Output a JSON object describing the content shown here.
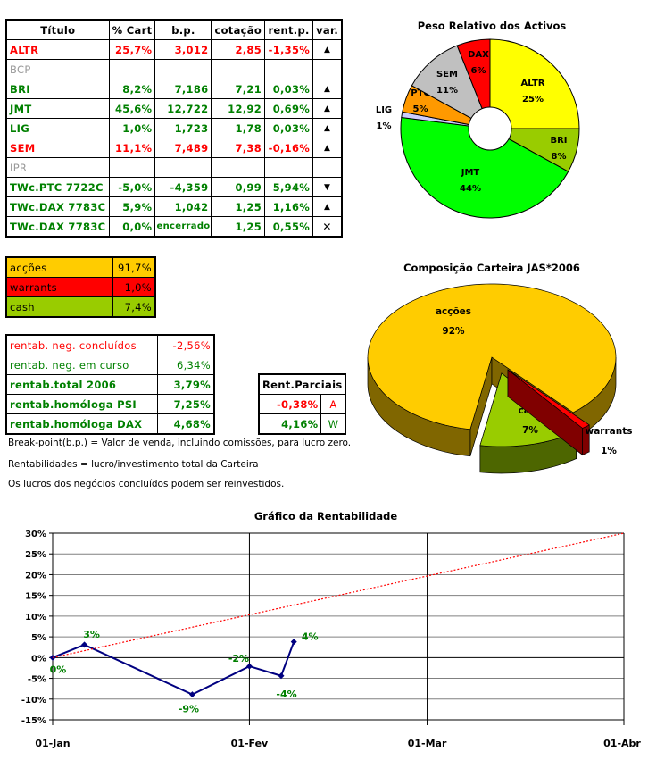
{
  "holdings": {
    "headers": [
      "Título",
      "% Cart",
      "b.p.",
      "cotação",
      "rent.p.",
      "var."
    ],
    "rows": [
      {
        "titulo": "ALTR",
        "cart": "25,7%",
        "bp": "3,012",
        "cotacao": "2,85",
        "rent": "-1,35%",
        "var": "up",
        "color": "red"
      },
      {
        "titulo": "BCP",
        "cart": "",
        "bp": "",
        "cotacao": "",
        "rent": "",
        "var": "",
        "color": "gray"
      },
      {
        "titulo": "BRI",
        "cart": "8,2%",
        "bp": "7,186",
        "cotacao": "7,21",
        "rent": "0,03%",
        "var": "up",
        "color": "green"
      },
      {
        "titulo": "JMT",
        "cart": "45,6%",
        "bp": "12,722",
        "cotacao": "12,92",
        "rent": "0,69%",
        "var": "up",
        "color": "green"
      },
      {
        "titulo": "LIG",
        "cart": "1,0%",
        "bp": "1,723",
        "cotacao": "1,78",
        "rent": "0,03%",
        "var": "up",
        "color": "green"
      },
      {
        "titulo": "SEM",
        "cart": "11,1%",
        "bp": "7,489",
        "cotacao": "7,38",
        "rent": "-0,16%",
        "var": "up",
        "color": "red"
      },
      {
        "titulo": "IPR",
        "cart": "",
        "bp": "",
        "cotacao": "",
        "rent": "",
        "var": "",
        "color": "gray"
      },
      {
        "titulo": "TWc.PTC 7722C",
        "cart": "-5,0%",
        "bp": "-4,359",
        "cotacao": "0,99",
        "rent": "5,94%",
        "var": "down",
        "color": "green"
      },
      {
        "titulo": "TWc.DAX 7783C",
        "cart": "5,9%",
        "bp": "1,042",
        "cotacao": "1,25",
        "rent": "1,16%",
        "var": "up",
        "color": "green"
      },
      {
        "titulo": "TWc.DAX 7783C",
        "cart": "0,0%",
        "bp": "encerrado",
        "cotacao": "1,25",
        "rent": "0,55%",
        "var": "closed",
        "color": "green"
      }
    ],
    "var_glyphs": {
      "up": "▲",
      "down": "▼",
      "closed": "✕"
    }
  },
  "composition": [
    {
      "label": "acções",
      "value": "91,7%",
      "bg": "#ffcc00"
    },
    {
      "label": "warrants",
      "value": "1,0%",
      "bg": "#ff0000"
    },
    {
      "label": "cash",
      "value": "7,4%",
      "bg": "#99cc00"
    }
  ],
  "returns": [
    {
      "label": "rentab. neg. concluídos",
      "value": "-2,56%",
      "style": "red norm"
    },
    {
      "label": "rentab. neg. em curso",
      "value": "6,34%",
      "style": "grn norm"
    },
    {
      "label": "rentab.total 2006",
      "value": "3,79%",
      "style": "grn"
    },
    {
      "label": "rentab.homóloga PSI",
      "value": "7,25%",
      "style": "grn"
    },
    {
      "label": "rentab.homóloga DAX",
      "value": "4,68%",
      "style": "grn"
    }
  ],
  "partial": {
    "title": "Rent.Parciais",
    "rows": [
      {
        "value": "-0,38%",
        "tag": "A",
        "color": "red"
      },
      {
        "value": "4,16%",
        "tag": "W",
        "color": "green"
      }
    ]
  },
  "notes": [
    "Break-point(b.p.) = Valor de venda, incluindo comissões, para lucro zero.",
    "Rentabilidades = lucro/investimento total da Carteira",
    "Os lucros dos negócios concluídos podem ser reinvestidos."
  ],
  "chart_data": [
    {
      "type": "pie",
      "title": "Peso Relativo dos Activos",
      "donut": true,
      "slices": [
        {
          "label": "ALTR",
          "value": 25,
          "text": "25%",
          "color": "#ffff00"
        },
        {
          "label": "BRI",
          "value": 8,
          "text": "8%",
          "color": "#99cc00"
        },
        {
          "label": "JMT",
          "value": 44,
          "text": "44%",
          "color": "#00ff00"
        },
        {
          "label": "LIG",
          "value": 1,
          "text": "1%",
          "color": "#ccccff"
        },
        {
          "label": "PTC",
          "value": 5,
          "text": "5%",
          "color": "#ff9900"
        },
        {
          "label": "SEM",
          "value": 11,
          "text": "11%",
          "color": "#c0c0c0"
        },
        {
          "label": "DAX",
          "value": 6,
          "text": "6%",
          "color": "#ff0000"
        }
      ]
    },
    {
      "type": "pie",
      "title": "Composição Carteira JAS*2006",
      "style": "3d-exploded",
      "slices": [
        {
          "label": "acções",
          "value": 92,
          "text": "92%",
          "color": "#ffcc00",
          "side": "#806600"
        },
        {
          "label": "cash",
          "value": 7,
          "text": "7%",
          "color": "#99cc00",
          "side": "#4d6600"
        },
        {
          "label": "warrants",
          "value": 1,
          "text": "1%",
          "color": "#ff0000",
          "side": "#800000"
        }
      ]
    },
    {
      "type": "line",
      "title": "Gráfico da Rentabilidade",
      "x_ticks": [
        "01-Jan",
        "01-Fev",
        "01-Mar",
        "01-Abr"
      ],
      "y_ticks": [
        "30%",
        "25%",
        "20%",
        "15%",
        "10%",
        "5%",
        "0%",
        "-5%",
        "-10%",
        "-15%"
      ],
      "ylim": [
        -15,
        30
      ],
      "grid": true,
      "series": [
        {
          "points": [
            {
              "x": "01-Jan",
              "y": 0,
              "label": "0%"
            },
            {
              "x": "06-Jan",
              "y": 3.1,
              "label": "3%"
            },
            {
              "x": "23-Jan",
              "y": -8.9,
              "label": "-9%"
            },
            {
              "x": "01-Fev",
              "y": -2.1,
              "label": "-2%"
            },
            {
              "x": "06-Fev",
              "y": -4.4,
              "label": "-4%"
            },
            {
              "x": "08-Fev",
              "y": 3.8,
              "label": "4%"
            }
          ],
          "color": "#000080"
        },
        {
          "points": [
            {
              "x": "01-Jan",
              "y": 0
            },
            {
              "x": "01-Abr",
              "y": 30
            }
          ],
          "color": "#ff0000",
          "dash": true
        }
      ]
    }
  ]
}
